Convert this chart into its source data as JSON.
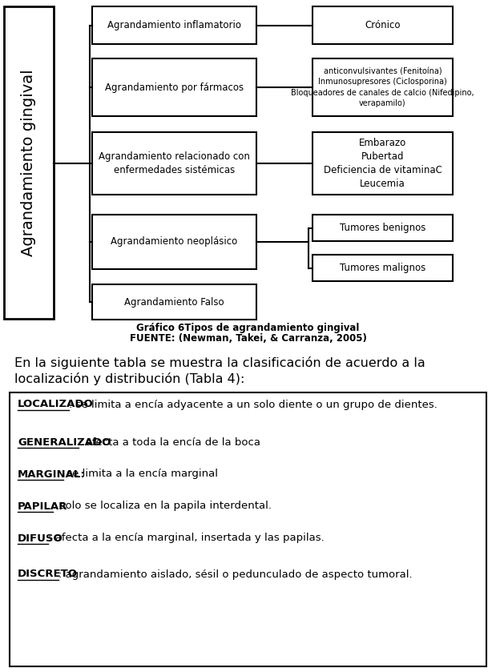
{
  "bg_color": "#ffffff",
  "caption_line1": "Gráfico 6Tipos de agrandamiento gingival",
  "caption_line2": "FUENTE: (Newman, Takei, & Carranza, 2005)",
  "para_line1": "En la siguiente tabla se muestra la clasificación de acuerdo a la",
  "para_line2": "localización y distribución (Tabla 4):",
  "table_entries": [
    {
      "bold": "LOCALIZADO",
      "rest": ": se limita a encía adyacente a un solo diente o un grupo de dientes."
    },
    {
      "bold": "GENERALIZADO",
      "rest": ": afecta a toda la encía de la boca"
    },
    {
      "bold": "MARGINAL:",
      "rest": " se limita a la encía marginal"
    },
    {
      "bold": "PAPILAR",
      "rest": ": solo se localiza en la papila interdental."
    },
    {
      "bold": "DIFUSO",
      "rest": ": afecta a la encía marginal, insertada y las papilas."
    },
    {
      "bold": "DISCRETO",
      "rest": ": agrandamiento aislado, sésil o pedunculado de aspecto tumoral."
    }
  ],
  "main_box_label": "Agrandamiento gingival",
  "level2_boxes": [
    "Agrandamiento inflamatorio",
    "Agrandamiento por fármacos",
    "Agrandamiento relacionado con\nenfermedades sistémicas",
    "Agrandamiento neoplásico",
    "Agrandamiento Falso"
  ]
}
